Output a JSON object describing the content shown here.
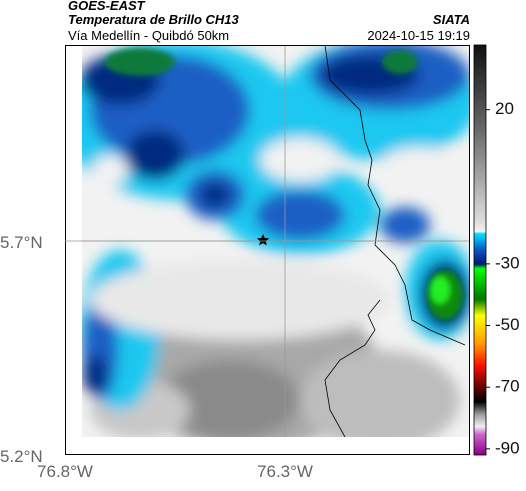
{
  "header": {
    "title": "GOES-EAST",
    "subtitle": "Temperatura de Brillo CH13",
    "caption": "Vía Medellín - Quibdó 50km",
    "source": "SIATA",
    "datetime": "2024-10-15 19:19"
  },
  "map": {
    "lat_ticks": [
      "5.7°N",
      "5.2°N"
    ],
    "lon_ticks": [
      "76.8°W",
      "76.3°W"
    ]
  },
  "colorbar": {
    "lim": [
      -92,
      41
    ],
    "ticks": [
      20,
      -30,
      -50,
      -70,
      -90
    ]
  }
}
